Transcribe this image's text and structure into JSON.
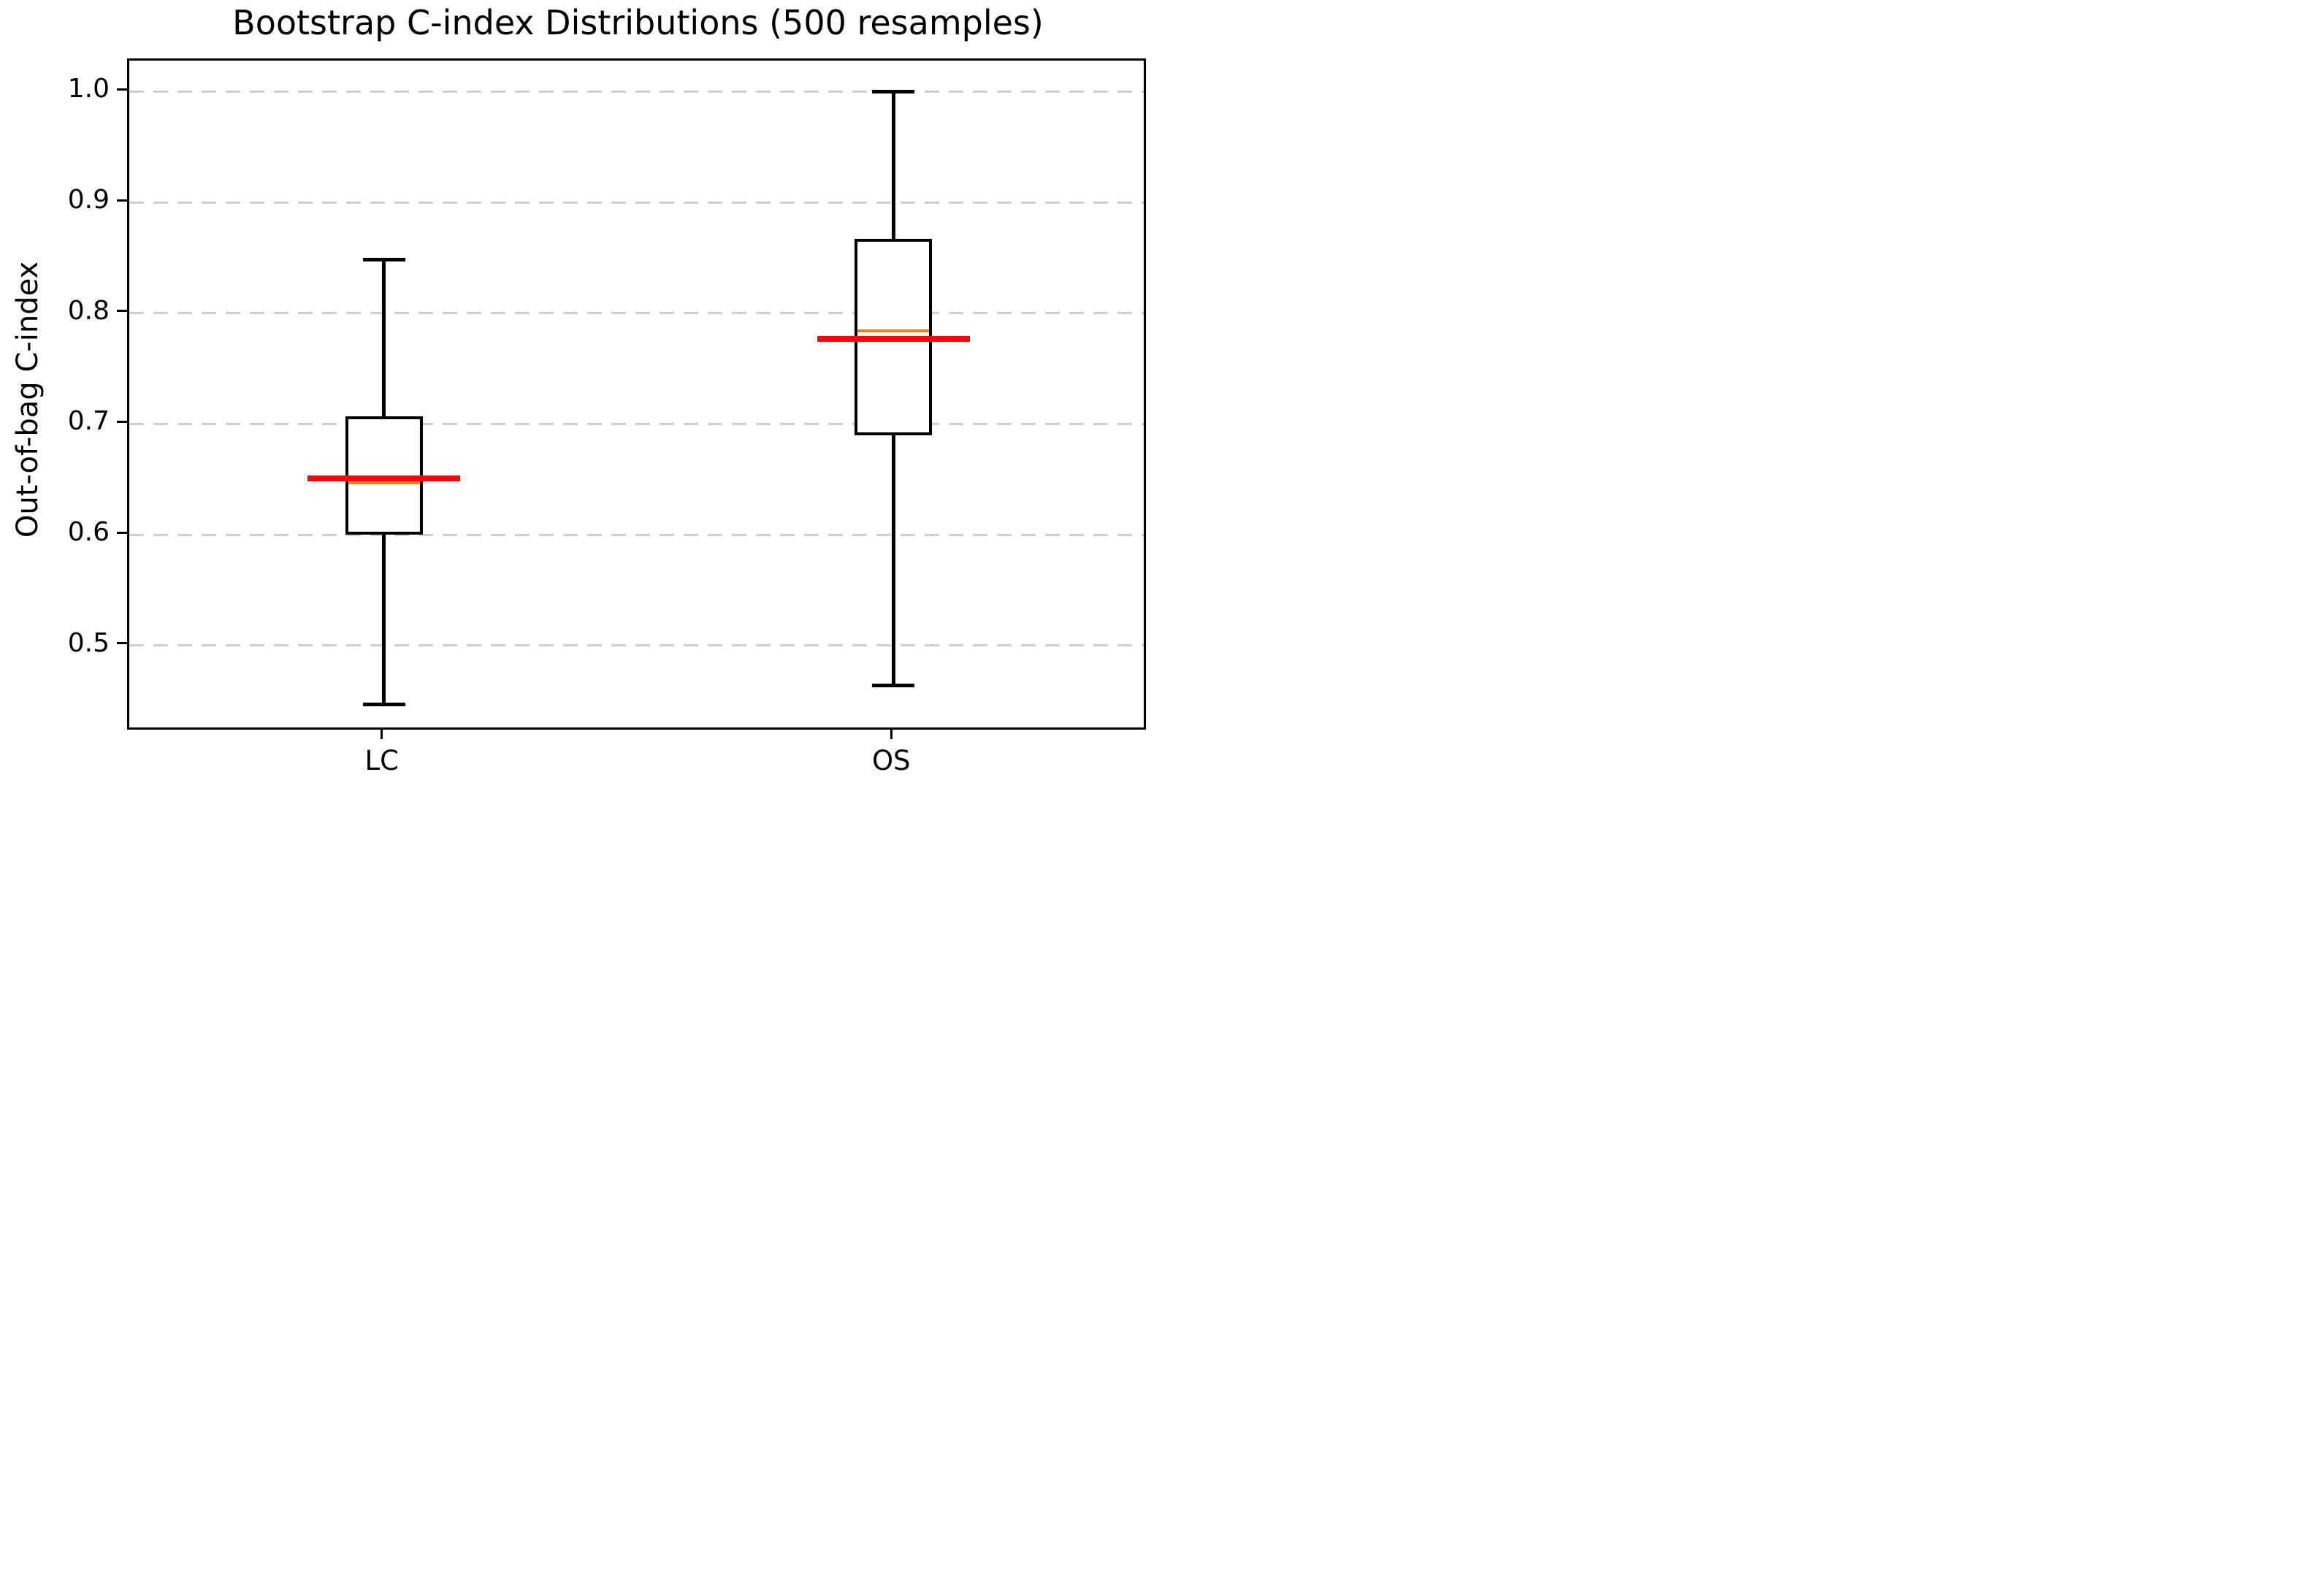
{
  "title": "Bootstrap C-index Distributions (500 resamples)",
  "chart_data": {
    "type": "boxplot",
    "title": "Bootstrap C-index Distributions (500 resamples)",
    "xlabel": "",
    "ylabel": "Out-of-bag C-index",
    "categories": [
      "LC",
      "OS"
    ],
    "y_ticks": [
      0.5,
      0.6,
      0.7,
      0.8,
      0.9,
      1.0
    ],
    "ylim": [
      0.422,
      1.028
    ],
    "grid": "horizontal-dashed",
    "legend": "none",
    "colors": {
      "box_line": "#000000",
      "median_line": "#ff7f0e",
      "mean_line": "#ff0000",
      "gridline": "#cfcfcf",
      "background": "#ffffff"
    },
    "series": [
      {
        "name": "LC",
        "whisker_low": 0.447,
        "q1": 0.6,
        "median": 0.647,
        "q3": 0.707,
        "whisker_high": 0.848,
        "mean_line": 0.651
      },
      {
        "name": "OS",
        "whisker_low": 0.464,
        "q1": 0.69,
        "median": 0.784,
        "q3": 0.867,
        "whisker_high": 1.0,
        "mean_line": 0.777
      }
    ]
  }
}
